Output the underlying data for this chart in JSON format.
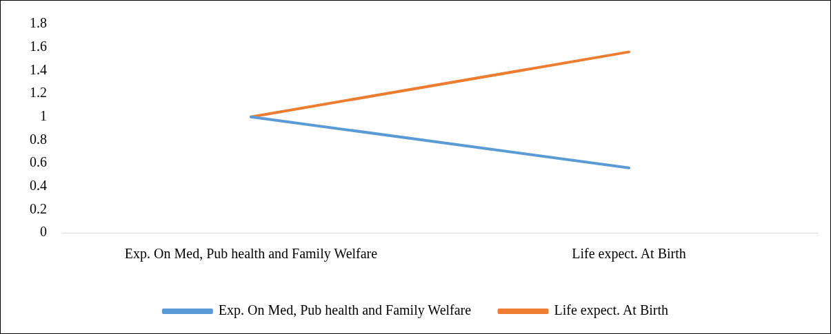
{
  "chart_data": {
    "type": "line",
    "categories": [
      "Exp. On Med, Pub health and Family Welfare",
      "Life expect. At Birth"
    ],
    "series": [
      {
        "name": "Exp. On Med, Pub health and Family Welfare",
        "color": "#5b9bd5",
        "values": [
          1,
          0.56
        ]
      },
      {
        "name": "Life expect. At Birth",
        "color": "#ed7d31",
        "values": [
          1,
          1.56
        ]
      }
    ],
    "ylim": [
      0,
      1.8
    ],
    "yticks": [
      0,
      0.2,
      0.4,
      0.6,
      0.8,
      1,
      1.2,
      1.4,
      1.6,
      1.8
    ],
    "grid": false,
    "legend": "bottom",
    "marker": "none",
    "line_style": "solid"
  }
}
